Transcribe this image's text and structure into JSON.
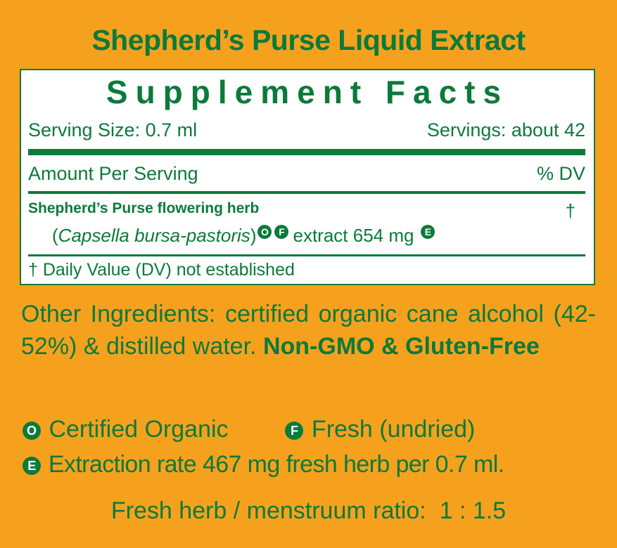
{
  "product_title": "Shepherd’s Purse Liquid Extract",
  "facts": {
    "heading": "Supplement Facts",
    "serving_size": "Serving Size: 0.7 ml",
    "servings": "Servings: about 42",
    "amount_per_serving": "Amount Per Serving",
    "dv_header": "% DV",
    "ingredient_name": "Shepherd’s Purse flowering herb",
    "ingredient_latin": "Capsella bursa-pastoris",
    "ingredient_amount": "extract 654 mg",
    "ingredient_dv": "†",
    "footnote": "† Daily Value (DV) not established"
  },
  "other_ingredients": "Other Ingredients: certified organic cane alcohol (42-52%) & distilled water.",
  "non_gmo": "Non-GMO & Gluten-Free",
  "legend": {
    "organic_symbol": "O",
    "organic": "Certified Organic",
    "fresh_symbol": "F",
    "fresh": "Fresh (undried)",
    "extraction_symbol": "E",
    "extraction": "Extraction rate 467 mg fresh herb per 0.7 ml."
  },
  "ratio": "Fresh herb / menstruum ratio:  1 : 1.5",
  "colors": {
    "background": "#f6a11e",
    "text": "#0b7a3b",
    "panel": "#ffffff"
  }
}
